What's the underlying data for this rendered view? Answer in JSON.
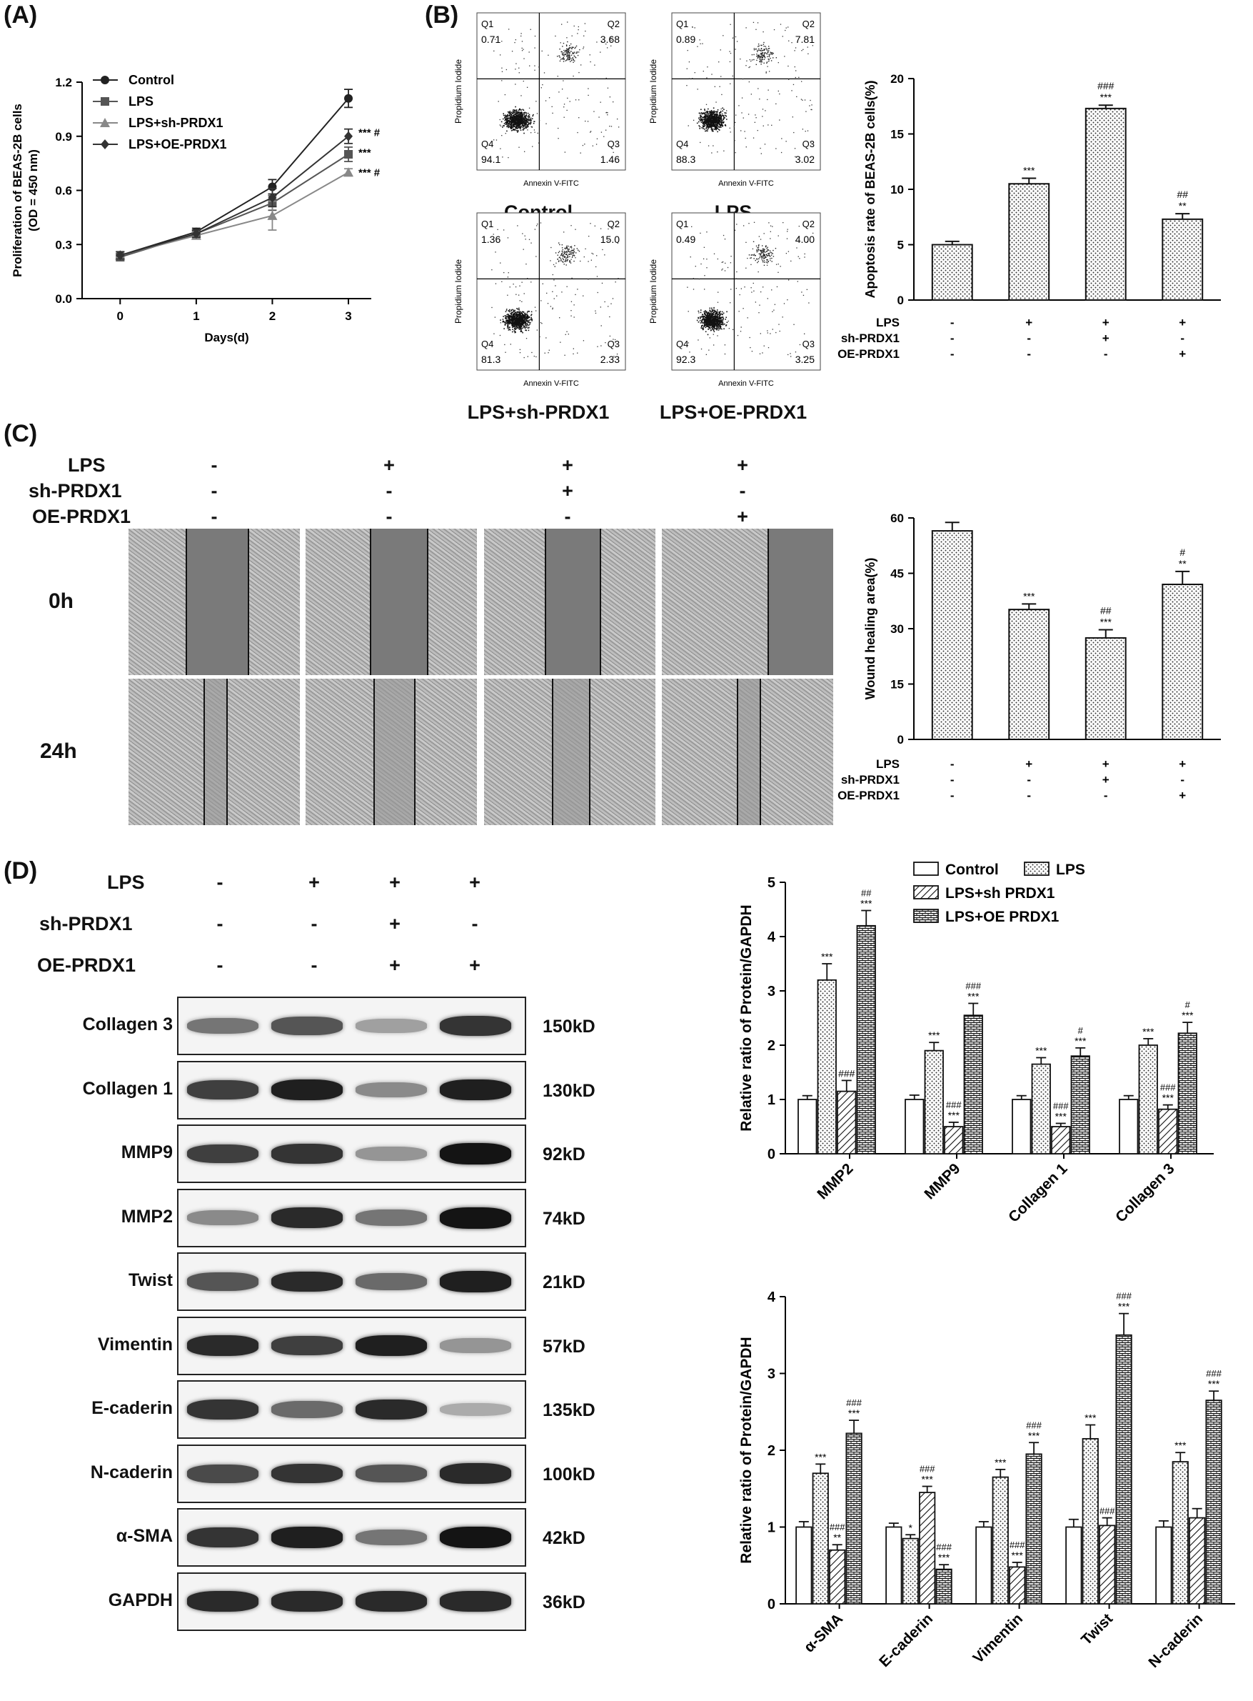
{
  "panels": {
    "A": "(A)",
    "B": "(B)",
    "C": "(C)",
    "D": "(D)"
  },
  "panel_a": {
    "chart_data": {
      "type": "line",
      "xlabel": "Days(d)",
      "ylabel": "Proliferation of BEAS-2B cells\n(OD = 450 nm)",
      "x": [
        0,
        1,
        2,
        3
      ],
      "xlim": [
        -0.5,
        3.3
      ],
      "ylim": [
        0.0,
        1.2
      ],
      "yticks": [
        "0.0",
        "0.3",
        "0.6",
        "0.9",
        "1.2"
      ],
      "xticks": [
        "0",
        "1",
        "2",
        "3"
      ],
      "legend_position": "top-left",
      "series": [
        {
          "name": "Control",
          "marker": "circle",
          "values": [
            0.24,
            0.37,
            0.62,
            1.11
          ],
          "err": [
            0.02,
            0.02,
            0.04,
            0.05
          ]
        },
        {
          "name": "LPS",
          "marker": "square",
          "values": [
            0.23,
            0.36,
            0.53,
            0.8
          ],
          "err": [
            0.02,
            0.02,
            0.04,
            0.04
          ]
        },
        {
          "name": "LPS+sh-PRDX1",
          "marker": "triangle",
          "values": [
            0.24,
            0.35,
            0.46,
            0.7
          ],
          "err": [
            0.02,
            0.02,
            0.08,
            0.02
          ]
        },
        {
          "name": "LPS+OE-PRDX1",
          "marker": "diamond",
          "values": [
            0.24,
            0.36,
            0.56,
            0.9
          ],
          "err": [
            0.02,
            0.02,
            0.05,
            0.04
          ]
        }
      ],
      "annotations": [
        "*** #",
        "***",
        "*** #"
      ]
    }
  },
  "panel_b_flow": {
    "axis_x": "Annexin V-FITC",
    "axis_y": "Propidium Iodide",
    "plots": [
      {
        "title": "Control",
        "q1": "0.71",
        "q2": "3.68",
        "q3": "1.46",
        "q4": "94.1"
      },
      {
        "title": "LPS",
        "q1": "0.89",
        "q2": "7.81",
        "q3": "3.02",
        "q4": "88.3"
      },
      {
        "title": "LPS+sh-PRDX1",
        "q1": "1.36",
        "q2": "15.0",
        "q3": "2.33",
        "q4": "81.3"
      },
      {
        "title": "LPS+OE-PRDX1",
        "q1": "0.49",
        "q2": "4.00",
        "q3": "3.25",
        "q4": "92.3"
      }
    ],
    "quad_labels": {
      "q1": "Q1",
      "q2": "Q2",
      "q3": "Q3",
      "q4": "Q4"
    }
  },
  "panel_b_bar": {
    "chart_data": {
      "type": "bar",
      "ylabel": "Apoptosis rate of BEAS-2B cells(%)",
      "ylim": [
        0,
        20
      ],
      "yticks": [
        "0",
        "5",
        "10",
        "15",
        "20"
      ],
      "values": [
        5.0,
        10.5,
        17.3,
        7.3
      ],
      "err": [
        0.3,
        0.5,
        0.3,
        0.5
      ],
      "sig_top": [
        "",
        "",
        "###",
        "##"
      ],
      "sig_bottom": [
        "",
        "***",
        "***",
        "**"
      ],
      "conditions": [
        {
          "label": "LPS",
          "signs": [
            "-",
            "+",
            "+",
            "+"
          ]
        },
        {
          "label": "sh-PRDX1",
          "signs": [
            "-",
            "-",
            "+",
            "-"
          ]
        },
        {
          "label": "OE-PRDX1",
          "signs": [
            "-",
            "-",
            "-",
            "+"
          ]
        }
      ]
    }
  },
  "panel_c": {
    "conditions": [
      {
        "label": "LPS",
        "signs": [
          "-",
          "+",
          "+",
          "+"
        ]
      },
      {
        "label": "sh-PRDX1",
        "signs": [
          "-",
          "-",
          "+",
          "-"
        ]
      },
      {
        "label": "OE-PRDX1",
        "signs": [
          "-",
          "-",
          "-",
          "+"
        ]
      }
    ],
    "times": [
      "0h",
      "24h"
    ]
  },
  "panel_c_bar": {
    "chart_data": {
      "type": "bar",
      "ylabel": "Wound healing area(%)",
      "ylim": [
        0,
        60
      ],
      "yticks": [
        "0",
        "15",
        "30",
        "45",
        "60"
      ],
      "values": [
        56.5,
        35.2,
        27.5,
        42.0
      ],
      "err": [
        2.3,
        1.5,
        2.2,
        3.5
      ],
      "sig_top": [
        "",
        "",
        "##",
        "#"
      ],
      "sig_bottom": [
        "",
        "***",
        "***",
        "**"
      ],
      "conditions": [
        {
          "label": "LPS",
          "signs": [
            "-",
            "+",
            "+",
            "+"
          ]
        },
        {
          "label": "sh-PRDX1",
          "signs": [
            "-",
            "-",
            "+",
            "-"
          ]
        },
        {
          "label": "OE-PRDX1",
          "signs": [
            "-",
            "-",
            "-",
            "+"
          ]
        }
      ]
    }
  },
  "panel_d_blot": {
    "conditions": [
      {
        "label": "LPS",
        "signs": [
          "-",
          "+",
          "+",
          "+"
        ]
      },
      {
        "label": "sh-PRDX1",
        "signs": [
          "-",
          "-",
          "+",
          "-"
        ]
      },
      {
        "label": "OE-PRDX1",
        "signs": [
          "-",
          "-",
          "+",
          "+"
        ]
      }
    ],
    "rows": [
      {
        "protein": "Collagen 3",
        "kd": "150kD",
        "intensity": [
          0.55,
          0.7,
          0.35,
          0.85
        ]
      },
      {
        "protein": "Collagen 1",
        "kd": "130kD",
        "intensity": [
          0.8,
          0.95,
          0.45,
          0.95
        ]
      },
      {
        "protein": "MMP9",
        "kd": "92kD",
        "intensity": [
          0.8,
          0.85,
          0.4,
          1.0
        ]
      },
      {
        "protein": "MMP2",
        "kd": "74kD",
        "intensity": [
          0.45,
          0.9,
          0.55,
          1.0
        ]
      },
      {
        "protein": "Twist",
        "kd": "21kD",
        "intensity": [
          0.7,
          0.9,
          0.6,
          0.95
        ]
      },
      {
        "protein": "Vimentin",
        "kd": "57kD",
        "intensity": [
          0.9,
          0.8,
          0.95,
          0.4
        ]
      },
      {
        "protein": "E-caderin",
        "kd": "135kD",
        "intensity": [
          0.85,
          0.6,
          0.9,
          0.3
        ]
      },
      {
        "protein": "N-caderin",
        "kd": "100kD",
        "intensity": [
          0.75,
          0.85,
          0.7,
          0.9
        ]
      },
      {
        "protein": "α-SMA",
        "kd": "42kD",
        "intensity": [
          0.85,
          0.95,
          0.55,
          1.0
        ]
      },
      {
        "protein": "GAPDH",
        "kd": "36kD",
        "intensity": [
          0.9,
          0.9,
          0.9,
          0.9
        ]
      }
    ]
  },
  "panel_d_bar1": {
    "chart_data": {
      "type": "bar",
      "ylabel": "Relative ratio of Protein/GAPDH",
      "ylim": [
        0,
        5
      ],
      "yticks": [
        "0",
        "1",
        "2",
        "3",
        "4",
        "5"
      ],
      "categories": [
        "MMP2",
        "MMP9",
        "Collagen 1",
        "Collagen 3"
      ],
      "legend_position": "top-right",
      "series": [
        {
          "name": "Control",
          "values": [
            1.0,
            1.0,
            1.0,
            1.0
          ],
          "err": [
            0.07,
            0.08,
            0.07,
            0.07
          ],
          "sig_top": [
            "",
            "",
            "",
            ""
          ],
          "sig_bottom": [
            "",
            "",
            "",
            ""
          ]
        },
        {
          "name": "LPS",
          "values": [
            3.2,
            1.9,
            1.65,
            2.0
          ],
          "err": [
            0.3,
            0.15,
            0.12,
            0.12
          ],
          "sig_top": [
            "",
            "",
            "",
            ""
          ],
          "sig_bottom": [
            "***",
            "***",
            "***",
            "***"
          ]
        },
        {
          "name": "LPS+sh PRDX1",
          "values": [
            1.15,
            0.5,
            0.5,
            0.82
          ],
          "err": [
            0.2,
            0.08,
            0.06,
            0.08
          ],
          "sig_top": [
            "",
            "###",
            "###",
            "###"
          ],
          "sig_bottom": [
            "###",
            "***",
            "***",
            "***"
          ]
        },
        {
          "name": "LPS+OE PRDX1",
          "values": [
            4.2,
            2.55,
            1.8,
            2.22
          ],
          "err": [
            0.28,
            0.22,
            0.15,
            0.2
          ],
          "sig_top": [
            "##",
            "###",
            "#",
            "#"
          ],
          "sig_bottom": [
            "***",
            "***",
            "***",
            "***"
          ]
        }
      ]
    }
  },
  "panel_d_bar2": {
    "chart_data": {
      "type": "bar",
      "ylabel": "Relative ratio of Protein/GAPDH",
      "ylim": [
        0,
        4
      ],
      "yticks": [
        "0",
        "1",
        "2",
        "3",
        "4"
      ],
      "categories": [
        "α-SMA",
        "E-caderin",
        "Vimentin",
        "Twist",
        "N-caderin"
      ],
      "series": [
        {
          "name": "Control",
          "values": [
            1.0,
            1.0,
            1.0,
            1.0,
            1.0
          ],
          "err": [
            0.07,
            0.05,
            0.07,
            0.1,
            0.08
          ],
          "sig_top": [
            "",
            "",
            "",
            "",
            ""
          ],
          "sig_bottom": [
            "",
            "",
            "",
            "",
            ""
          ]
        },
        {
          "name": "LPS",
          "values": [
            1.7,
            0.85,
            1.65,
            2.15,
            1.85
          ],
          "err": [
            0.12,
            0.05,
            0.1,
            0.18,
            0.12
          ],
          "sig_top": [
            "",
            "",
            "",
            "",
            ""
          ],
          "sig_bottom": [
            "***",
            "*",
            "***",
            "***",
            "***"
          ]
        },
        {
          "name": "LPS+sh PRDX1",
          "values": [
            0.7,
            1.45,
            0.48,
            1.02,
            1.12
          ],
          "err": [
            0.07,
            0.08,
            0.06,
            0.1,
            0.12
          ],
          "sig_top": [
            "###",
            "###",
            "###",
            "###",
            ""
          ],
          "sig_bottom": [
            "**",
            "***",
            "***",
            "",
            ""
          ]
        },
        {
          "name": "LPS+OE PRDX1",
          "values": [
            2.22,
            0.45,
            1.95,
            3.5,
            2.65
          ],
          "err": [
            0.17,
            0.06,
            0.15,
            0.28,
            0.12
          ],
          "sig_top": [
            "###",
            "###",
            "###",
            "###",
            "###"
          ],
          "sig_bottom": [
            "***",
            "***",
            "***",
            "***",
            "***"
          ]
        }
      ]
    }
  }
}
